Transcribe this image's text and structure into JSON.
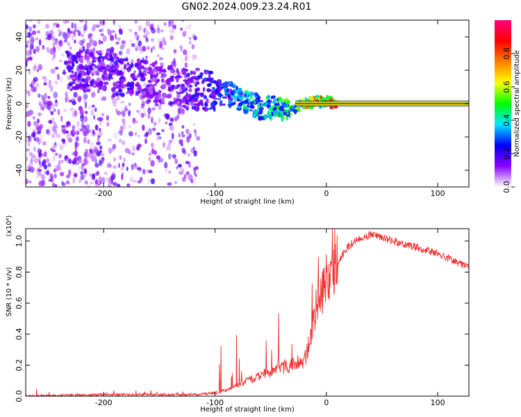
{
  "title": "GN02.2024.009.23.24.R01",
  "chart_data": [
    {
      "type": "heatmap",
      "xlabel": "Height of straight line (km)",
      "ylabel": "Frequency (Hz)",
      "xlim": [
        -270,
        128
      ],
      "ylim": [
        -50,
        50
      ],
      "x_ticks": [
        "-200",
        "-100",
        "0",
        "100"
      ],
      "y_ticks": [
        "-40",
        "-20",
        "0",
        "20",
        "40"
      ],
      "colorbar": {
        "label": "Normalized spectral amplitude",
        "range": [
          0,
          1
        ],
        "ticks": [
          "0.0",
          "0.2",
          "0.4",
          "0.6",
          "0.8"
        ],
        "colors": [
          "#ffffff",
          "#8b00ff",
          "#0000ff",
          "#00e5ff",
          "#00ff00",
          "#ffff00",
          "#ff7f00",
          "#ff0000",
          "#ff0080"
        ]
      },
      "ridge": {
        "x": [
          -230,
          -210,
          -190,
          -170,
          -150,
          -130,
          -110,
          -90,
          -75,
          -60,
          -45,
          -30,
          -20,
          -10,
          0,
          10,
          50,
          100,
          128
        ],
        "freq": [
          19,
          20,
          18,
          15,
          12,
          9,
          8,
          6,
          2,
          -2,
          -3,
          -3,
          0,
          1,
          1,
          0,
          0,
          0,
          0
        ],
        "amplitude": [
          0.2,
          0.2,
          0.2,
          0.2,
          0.15,
          0.2,
          0.25,
          0.3,
          0.4,
          0.45,
          0.5,
          0.55,
          0.7,
          0.8,
          0.85,
          0.9,
          0.9,
          0.9,
          0.9
        ]
      }
    },
    {
      "type": "line",
      "xlabel": "Height of straight line (km)",
      "ylabel": "SNR (10 * v/v)",
      "y_exponent_label": "(x10⁴)",
      "xlim": [
        -270,
        128
      ],
      "ylim": [
        0,
        1.08
      ],
      "x_ticks": [
        "-200",
        "-100",
        "0",
        "100"
      ],
      "y_ticks": [
        "0.0",
        "0.2",
        "0.4",
        "0.6",
        "0.8",
        "1.0"
      ],
      "color": "#f03030",
      "series": [
        {
          "x": [
            -270,
            -240,
            -200,
            -150,
            -120,
            -100,
            -90,
            -80,
            -70,
            -60,
            -50,
            -40,
            -30,
            -20,
            -15,
            -10,
            -5,
            0,
            10,
            20,
            30,
            40,
            60,
            80,
            100,
            128
          ],
          "values": [
            0.0,
            0.005,
            0.01,
            0.01,
            0.01,
            0.02,
            0.04,
            0.07,
            0.1,
            0.13,
            0.16,
            0.18,
            0.2,
            0.22,
            0.35,
            0.55,
            0.65,
            0.75,
            0.86,
            0.97,
            1.02,
            1.04,
            1.0,
            0.96,
            0.92,
            0.83
          ]
        }
      ]
    }
  ]
}
